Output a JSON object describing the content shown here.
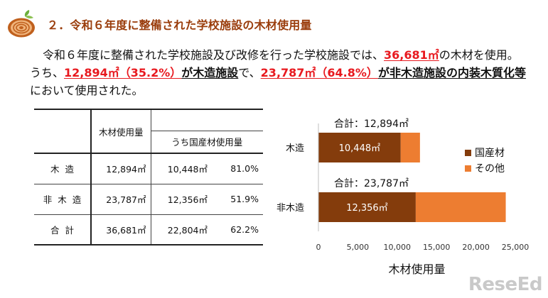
{
  "heading": {
    "title": "２．令和６年度に整備された学校施設の木材使用量",
    "icon": "log-cross-section-icon"
  },
  "body": {
    "t1": "令和６年度に整備された学校施設及び改修を行った学校施設では、",
    "r1": "36,681㎡",
    "t2": "の木材を使用。 うち、",
    "r2": "12,894㎡（35.2%）",
    "b1": "が木造施設",
    "t3": "で、",
    "r3": "23,787㎡（64.8%）",
    "b2": "が非木造施設の内装木質化等",
    "t4": "において使用された。"
  },
  "table": {
    "header_wood": "木材使用量",
    "header_domestic": "うち国産材使用量",
    "rows": [
      {
        "label": "木造",
        "wood": "12,894㎡",
        "domestic": "10,448㎡",
        "ratio": "81.0%"
      },
      {
        "label": "非木造",
        "wood": "23,787㎡",
        "domestic": "12,356㎡",
        "ratio": "51.9%"
      },
      {
        "label": "合計",
        "wood": "36,681㎡",
        "domestic": "22,804㎡",
        "ratio": "62.2%"
      }
    ]
  },
  "watermark": "ReseEd",
  "chart_data": {
    "type": "bar",
    "orientation": "horizontal",
    "stacked": true,
    "categories": [
      "木造",
      "非木造"
    ],
    "series": [
      {
        "name": "国産材",
        "values": [
          10448,
          12356
        ],
        "color": "#843c0c",
        "labels": [
          "10,448㎡",
          "12,356㎡"
        ]
      },
      {
        "name": "その他",
        "values": [
          2446,
          11431
        ],
        "color": "#ed7d31"
      }
    ],
    "totals": [
      "合計：12,894㎡",
      "合計：23,787㎡"
    ],
    "xlabel": "木材使用量",
    "ylabel": "",
    "xlim": [
      0,
      25000
    ],
    "xticks": [
      0,
      5000,
      10000,
      15000,
      20000,
      25000
    ],
    "xtick_labels": [
      "0",
      "5,000",
      "10,000",
      "15,000",
      "20,000",
      "25,000"
    ],
    "grid": false,
    "legend_position": "right"
  }
}
